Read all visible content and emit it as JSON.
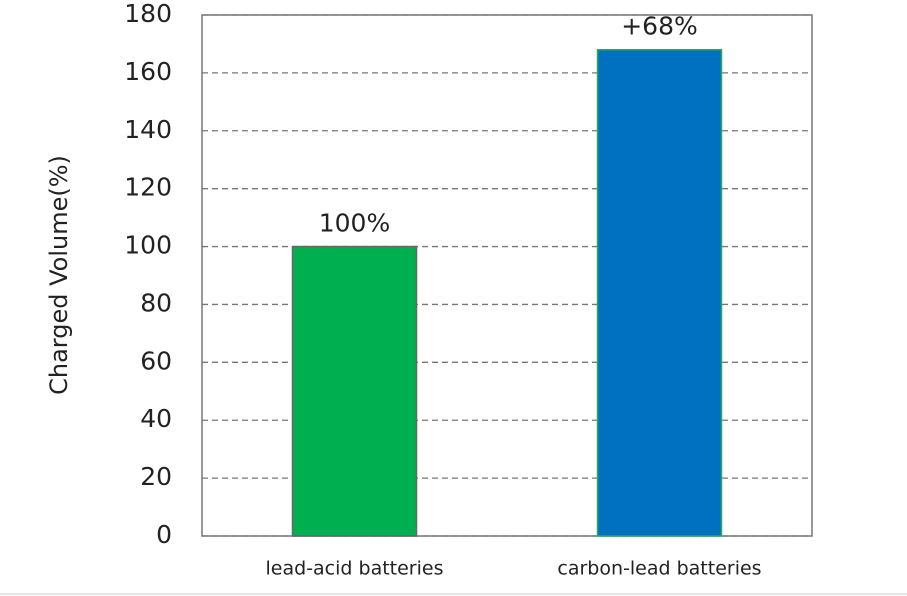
{
  "chart_data": {
    "type": "bar",
    "ylabel": "Charged Volume(%)",
    "categories": [
      "lead-acid batteries",
      "carbon-lead batteries"
    ],
    "values": [
      100,
      168
    ],
    "colors": [
      "#00b050",
      "#0070c0"
    ],
    "annotations": [
      "100%",
      "+68%"
    ],
    "ylim": [
      0,
      180
    ],
    "yticks": [
      0,
      20,
      40,
      60,
      80,
      100,
      120,
      140,
      160,
      180
    ],
    "grid": true
  }
}
